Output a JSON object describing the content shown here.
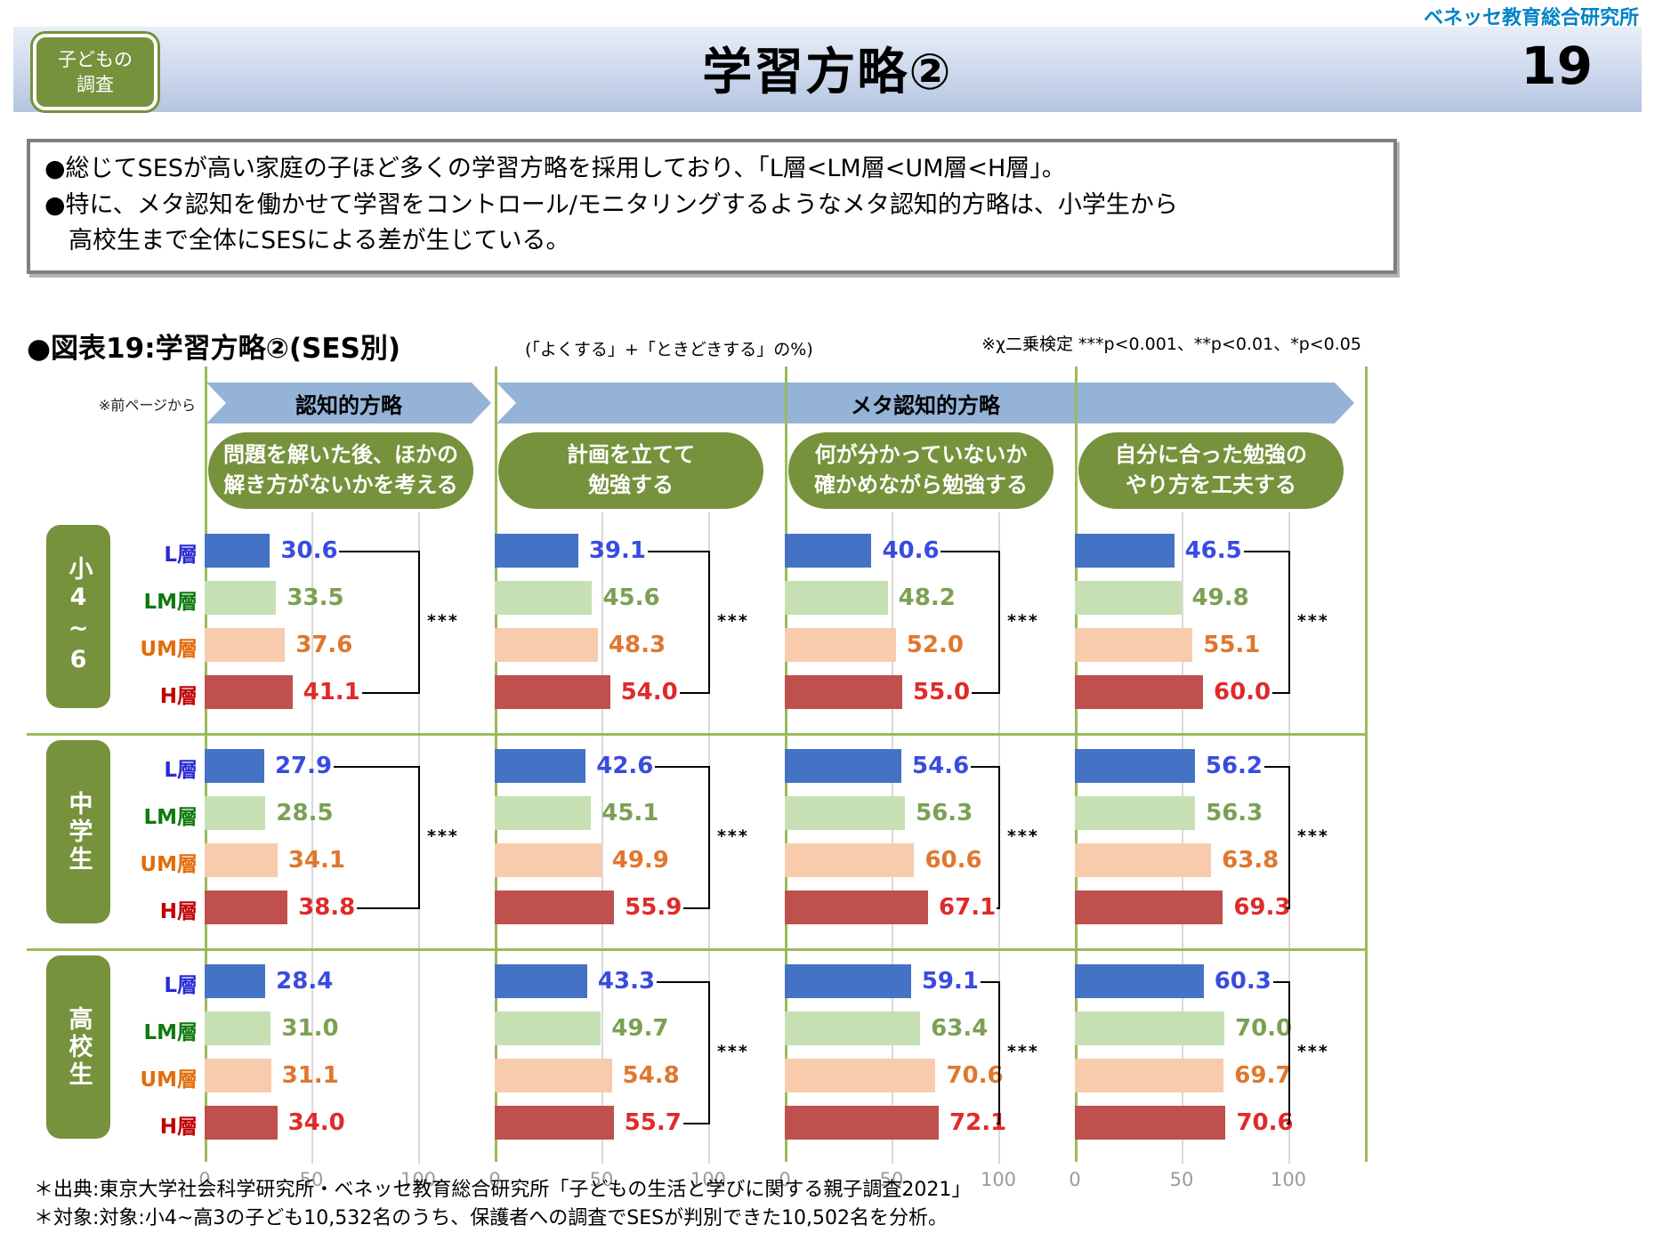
{
  "brand": "ベネッセ教育総合研究所",
  "header": {
    "badge_lines": [
      "子どもの",
      "調査"
    ],
    "title": "学習方略②",
    "page": "19"
  },
  "summary": {
    "lines": [
      "●総じてSESが高い家庭の子ほど多くの学習方略を採用しており、「L層<LM層<UM層<H層」。",
      "●特に、メタ認知を働かせて学習をコントロール/モニタリングするようなメタ認知的方略は、小学生から",
      "高校生まで全体にSESによる差が生じている。"
    ]
  },
  "figure": {
    "title": "●図表19:学習方略②(SES別)",
    "subtitle": "(「よくする」+「ときどきする」の%)",
    "note": "※χ二乗検定  ***p<0.001、**p<0.01、*p<0.05",
    "prev_page_note": "※前ページから"
  },
  "chart_data": {
    "type": "bar",
    "orientation": "horizontal",
    "xlim": [
      0,
      100
    ],
    "xticks": [
      "0",
      "50",
      "100"
    ],
    "grid": true,
    "strategy_bands": [
      {
        "label": "認知的方略",
        "span_columns": 1
      },
      {
        "label": "メタ認知的方略",
        "span_columns": 3
      }
    ],
    "columns": [
      {
        "lines": [
          "問題を解いた後、ほかの",
          "解き方がないかを考える"
        ]
      },
      {
        "lines": [
          "計画を立てて",
          "勉強する"
        ]
      },
      {
        "lines": [
          "何が分かっていないか",
          "確かめながら勉強する"
        ]
      },
      {
        "lines": [
          "自分に合った勉強の",
          "やり方を工夫する"
        ]
      }
    ],
    "series_labels": [
      "L層",
      "LM層",
      "UM層",
      "H層"
    ],
    "series_label_colors": [
      "#2B2BD5",
      "#0E7A0E",
      "#E36C0A",
      "#C00000"
    ],
    "value_colors": [
      "#3A4BE0",
      "#7BA053",
      "#E0772E",
      "#E02A2A"
    ],
    "bar_colors": [
      "#4472C4",
      "#C6E0B4",
      "#F8CBAD",
      "#C0504D"
    ],
    "rows": [
      {
        "label": "小4~6",
        "cells": [
          {
            "values": [
              "30.6",
              "33.5",
              "37.6",
              "41.1"
            ],
            "sig": "***"
          },
          {
            "values": [
              "39.1",
              "45.6",
              "48.3",
              "54.0"
            ],
            "sig": "***"
          },
          {
            "values": [
              "40.6",
              "48.2",
              "52.0",
              "55.0"
            ],
            "sig": "***"
          },
          {
            "values": [
              "46.5",
              "49.8",
              "55.1",
              "60.0"
            ],
            "sig": "***"
          }
        ]
      },
      {
        "label": "中学生",
        "cells": [
          {
            "values": [
              "27.9",
              "28.5",
              "34.1",
              "38.8"
            ],
            "sig": "***"
          },
          {
            "values": [
              "42.6",
              "45.1",
              "49.9",
              "55.9"
            ],
            "sig": "***"
          },
          {
            "values": [
              "54.6",
              "56.3",
              "60.6",
              "67.1"
            ],
            "sig": "***"
          },
          {
            "values": [
              "56.2",
              "56.3",
              "63.8",
              "69.3"
            ],
            "sig": "***"
          }
        ]
      },
      {
        "label": "高校生",
        "cells": [
          {
            "values": [
              "28.4",
              "31.0",
              "31.1",
              "34.0"
            ],
            "sig": null
          },
          {
            "values": [
              "43.3",
              "49.7",
              "54.8",
              "55.7"
            ],
            "sig": "***"
          },
          {
            "values": [
              "59.1",
              "63.4",
              "70.6",
              "72.1"
            ],
            "sig": "***"
          },
          {
            "values": [
              "60.3",
              "70.0",
              "69.7",
              "70.6"
            ],
            "sig": "***"
          }
        ]
      }
    ]
  },
  "footnotes": [
    "＊出典:東京大学社会科学研究所・ベネッセ教育総合研究所「子どもの生活と学びに関する親子調査2021」",
    "＊対象:対象:小4~高3の子ども10,532名のうち、保護者への調査でSESが判別できた10,502名を分析。"
  ]
}
